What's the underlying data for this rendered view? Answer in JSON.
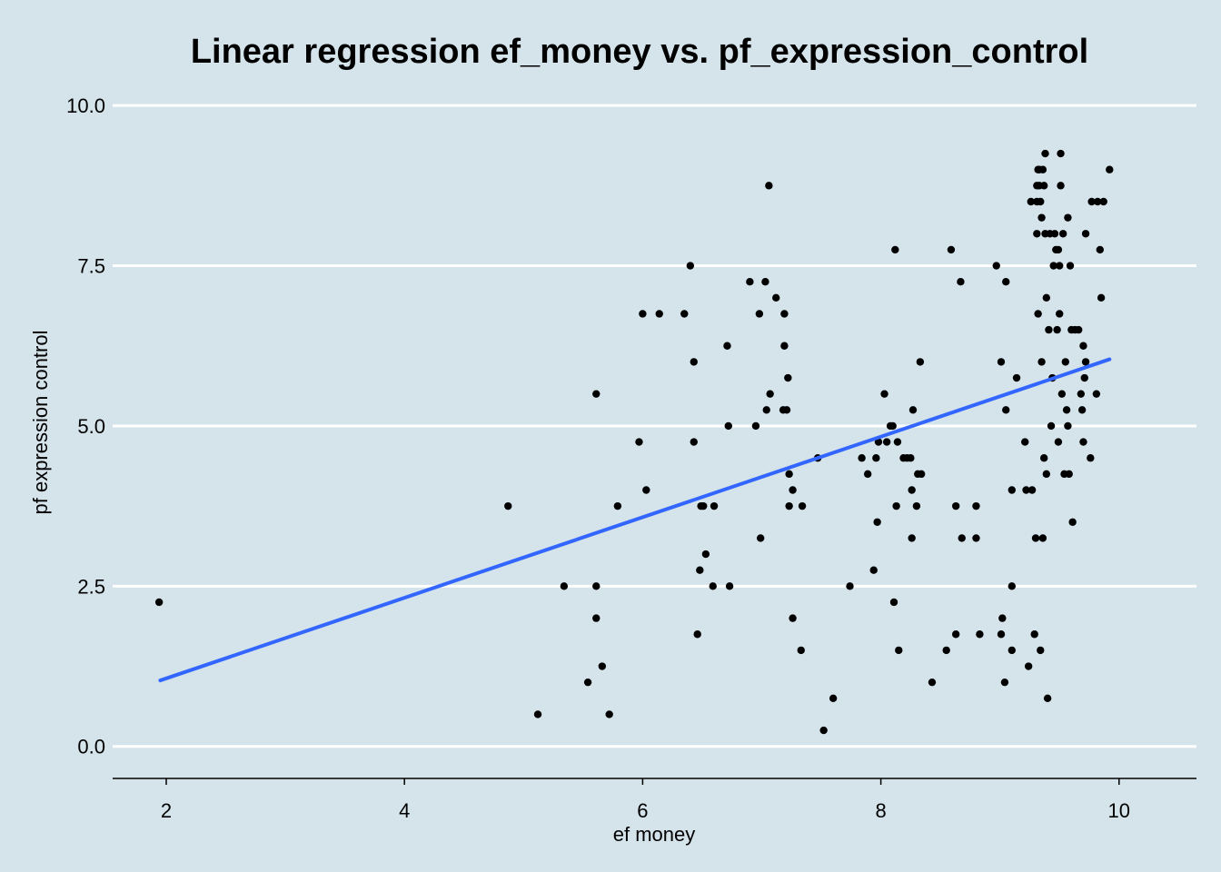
{
  "colors": {
    "background": "#d5e4eb",
    "grid": "#ffffff",
    "point": "#000000",
    "fit_line": "#3366ff"
  },
  "chart_data": {
    "type": "scatter",
    "title": "Linear regression ef_money vs. pf_expression_control",
    "xlabel": "ef money",
    "ylabel": "pf expression control",
    "xlim": [
      1.55,
      10.65
    ],
    "ylim": [
      -0.5,
      10.3
    ],
    "x_ticks": [
      2,
      4,
      6,
      8,
      10
    ],
    "x_tick_labels": [
      "2",
      "4",
      "6",
      "8",
      "10"
    ],
    "y_ticks": [
      0,
      2.5,
      5,
      7.5,
      10
    ],
    "y_tick_labels": [
      "0.0",
      "2.5",
      "5.0",
      "7.5",
      "10.0"
    ],
    "grid": "horizontal",
    "fit": {
      "x_start": 1.95,
      "x_end": 9.92,
      "y_start": 1.03,
      "y_end": 6.04
    },
    "points": [
      [
        1.94,
        2.25
      ],
      [
        4.87,
        3.75
      ],
      [
        5.12,
        0.5
      ],
      [
        5.34,
        2.5
      ],
      [
        5.54,
        1.0
      ],
      [
        5.61,
        5.5
      ],
      [
        5.61,
        2.5
      ],
      [
        5.61,
        2.0
      ],
      [
        5.66,
        1.25
      ],
      [
        5.72,
        0.5
      ],
      [
        5.79,
        3.75
      ],
      [
        5.97,
        4.75
      ],
      [
        6.0,
        6.75
      ],
      [
        6.03,
        4.0
      ],
      [
        6.14,
        6.75
      ],
      [
        6.35,
        6.75
      ],
      [
        6.4,
        7.5
      ],
      [
        6.43,
        6.0
      ],
      [
        6.43,
        4.75
      ],
      [
        6.46,
        1.75
      ],
      [
        6.48,
        2.75
      ],
      [
        6.49,
        3.75
      ],
      [
        6.51,
        3.75
      ],
      [
        6.53,
        3.0
      ],
      [
        6.59,
        2.5
      ],
      [
        6.6,
        3.75
      ],
      [
        6.71,
        6.25
      ],
      [
        6.72,
        5.0
      ],
      [
        6.73,
        2.5
      ],
      [
        6.9,
        7.25
      ],
      [
        6.95,
        5.0
      ],
      [
        6.98,
        6.75
      ],
      [
        6.99,
        3.25
      ],
      [
        7.03,
        7.25
      ],
      [
        7.04,
        5.25
      ],
      [
        7.06,
        8.75
      ],
      [
        7.07,
        5.5
      ],
      [
        7.12,
        7.0
      ],
      [
        7.18,
        5.25
      ],
      [
        7.19,
        6.75
      ],
      [
        7.19,
        6.25
      ],
      [
        7.21,
        5.25
      ],
      [
        7.22,
        5.75
      ],
      [
        7.23,
        4.25
      ],
      [
        7.23,
        3.75
      ],
      [
        7.26,
        4.0
      ],
      [
        7.26,
        2.0
      ],
      [
        7.33,
        1.5
      ],
      [
        7.34,
        3.75
      ],
      [
        7.47,
        4.5
      ],
      [
        7.52,
        0.25
      ],
      [
        7.6,
        0.75
      ],
      [
        7.74,
        2.5
      ],
      [
        7.84,
        4.5
      ],
      [
        7.89,
        4.25
      ],
      [
        7.94,
        2.75
      ],
      [
        7.96,
        4.5
      ],
      [
        7.97,
        3.5
      ],
      [
        7.98,
        4.75
      ],
      [
        8.03,
        5.5
      ],
      [
        8.05,
        4.75
      ],
      [
        8.08,
        5.0
      ],
      [
        8.1,
        5.0
      ],
      [
        8.11,
        2.25
      ],
      [
        8.12,
        7.75
      ],
      [
        8.13,
        3.75
      ],
      [
        8.14,
        4.75
      ],
      [
        8.15,
        1.5
      ],
      [
        8.19,
        4.5
      ],
      [
        8.22,
        4.5
      ],
      [
        8.25,
        4.5
      ],
      [
        8.26,
        3.25
      ],
      [
        8.26,
        4.0
      ],
      [
        8.27,
        5.25
      ],
      [
        8.3,
        3.75
      ],
      [
        8.31,
        4.25
      ],
      [
        8.33,
        6.0
      ],
      [
        8.34,
        4.25
      ],
      [
        8.43,
        1.0
      ],
      [
        8.55,
        1.5
      ],
      [
        8.59,
        7.75
      ],
      [
        8.63,
        1.75
      ],
      [
        8.63,
        3.75
      ],
      [
        8.67,
        7.25
      ],
      [
        8.68,
        3.25
      ],
      [
        8.8,
        3.25
      ],
      [
        8.8,
        3.75
      ],
      [
        8.83,
        1.75
      ],
      [
        8.97,
        7.5
      ],
      [
        9.01,
        6.0
      ],
      [
        9.01,
        1.75
      ],
      [
        9.02,
        2.0
      ],
      [
        9.04,
        1.0
      ],
      [
        9.05,
        7.25
      ],
      [
        9.05,
        5.25
      ],
      [
        9.1,
        4.0
      ],
      [
        9.1,
        2.5
      ],
      [
        9.1,
        1.5
      ],
      [
        9.14,
        5.75
      ],
      [
        9.21,
        4.75
      ],
      [
        9.22,
        4.0
      ],
      [
        9.24,
        1.25
      ],
      [
        9.26,
        8.5
      ],
      [
        9.27,
        4.0
      ],
      [
        9.29,
        1.75
      ],
      [
        9.3,
        3.25
      ],
      [
        9.31,
        8.0
      ],
      [
        9.31,
        8.75
      ],
      [
        9.31,
        8.5
      ],
      [
        9.32,
        6.75
      ],
      [
        9.32,
        9.0
      ],
      [
        9.33,
        8.75
      ],
      [
        9.33,
        9.0
      ],
      [
        9.34,
        8.5
      ],
      [
        9.34,
        1.5
      ],
      [
        9.35,
        6.0
      ],
      [
        9.35,
        8.25
      ],
      [
        9.36,
        9.0
      ],
      [
        9.36,
        3.25
      ],
      [
        9.37,
        8.75
      ],
      [
        9.37,
        4.5
      ],
      [
        9.38,
        9.25
      ],
      [
        9.38,
        8.0
      ],
      [
        9.39,
        7.0
      ],
      [
        9.39,
        4.25
      ],
      [
        9.4,
        0.75
      ],
      [
        9.41,
        6.5
      ],
      [
        9.42,
        8.0
      ],
      [
        9.43,
        5.0
      ],
      [
        9.44,
        5.75
      ],
      [
        9.45,
        7.5
      ],
      [
        9.46,
        8.0
      ],
      [
        9.47,
        7.75
      ],
      [
        9.48,
        6.5
      ],
      [
        9.49,
        7.75
      ],
      [
        9.49,
        4.75
      ],
      [
        9.5,
        7.5
      ],
      [
        9.5,
        6.75
      ],
      [
        9.51,
        9.25
      ],
      [
        9.51,
        8.75
      ],
      [
        9.52,
        5.5
      ],
      [
        9.53,
        8.0
      ],
      [
        9.54,
        4.25
      ],
      [
        9.55,
        6.0
      ],
      [
        9.56,
        5.25
      ],
      [
        9.57,
        8.25
      ],
      [
        9.57,
        5.0
      ],
      [
        9.58,
        4.25
      ],
      [
        9.59,
        7.5
      ],
      [
        9.6,
        6.5
      ],
      [
        9.61,
        3.5
      ],
      [
        9.63,
        6.5
      ],
      [
        9.66,
        6.5
      ],
      [
        9.68,
        5.5
      ],
      [
        9.69,
        5.25
      ],
      [
        9.7,
        6.25
      ],
      [
        9.7,
        4.75
      ],
      [
        9.71,
        5.75
      ],
      [
        9.72,
        8.0
      ],
      [
        9.72,
        6.0
      ],
      [
        9.76,
        4.5
      ],
      [
        9.77,
        8.5
      ],
      [
        9.81,
        5.5
      ],
      [
        9.82,
        8.5
      ],
      [
        9.84,
        7.75
      ],
      [
        9.85,
        7.0
      ],
      [
        9.87,
        8.5
      ],
      [
        9.92,
        9.0
      ]
    ]
  }
}
